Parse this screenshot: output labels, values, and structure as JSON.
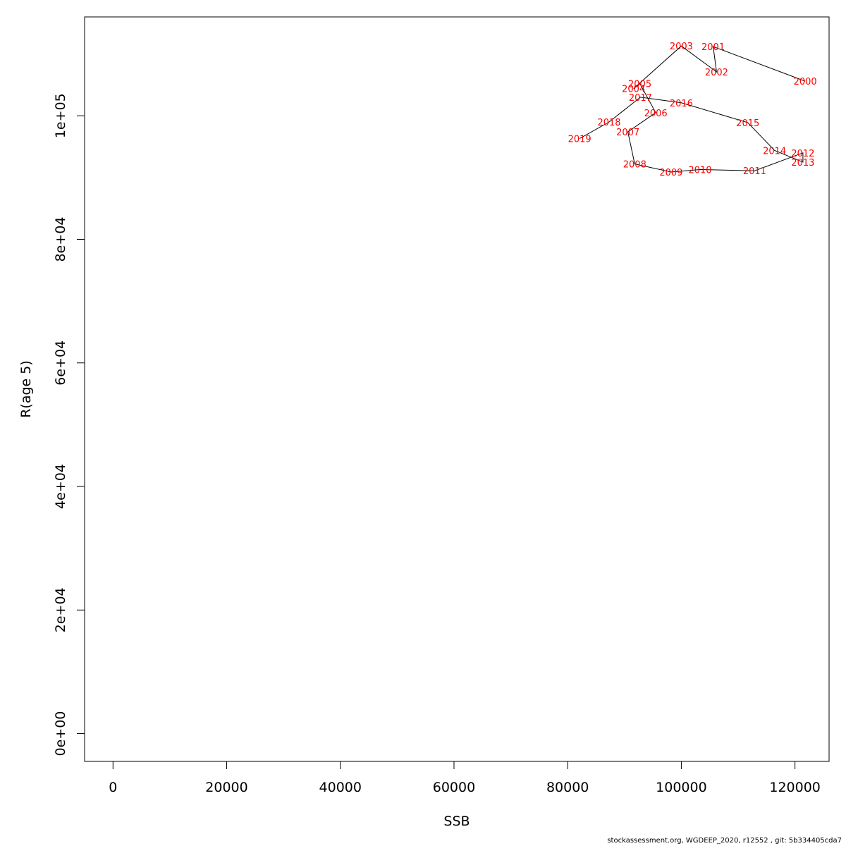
{
  "chart_data": {
    "type": "line",
    "title": "",
    "xlabel": "SSB",
    "ylabel": "R(age 5)",
    "xlim": [
      -5000,
      126000
    ],
    "ylim": [
      -4500,
      116000
    ],
    "xticks": [
      0,
      20000,
      40000,
      60000,
      80000,
      100000,
      120000
    ],
    "xtick_labels": [
      "0",
      "20000",
      "40000",
      "60000",
      "80000",
      "100000",
      "120000"
    ],
    "yticks": [
      0,
      20000,
      40000,
      60000,
      80000,
      100000
    ],
    "ytick_labels": [
      "0e+00",
      "2e+04",
      "4e+04",
      "6e+04",
      "8e+04",
      "1e+05"
    ],
    "label_color": "#ff0000",
    "line_color": "#000000",
    "points": [
      {
        "year": "2000",
        "x": 121800,
        "y": 105600
      },
      {
        "year": "2001",
        "x": 105600,
        "y": 111200
      },
      {
        "year": "2002",
        "x": 106200,
        "y": 107100
      },
      {
        "year": "2003",
        "x": 100000,
        "y": 111300
      },
      {
        "year": "2004",
        "x": 91600,
        "y": 104400
      },
      {
        "year": "2005",
        "x": 92700,
        "y": 105200
      },
      {
        "year": "2006",
        "x": 95500,
        "y": 100500
      },
      {
        "year": "2007",
        "x": 90600,
        "y": 97400
      },
      {
        "year": "2008",
        "x": 91800,
        "y": 92200
      },
      {
        "year": "2009",
        "x": 98200,
        "y": 90900
      },
      {
        "year": "2010",
        "x": 103300,
        "y": 91300
      },
      {
        "year": "2011",
        "x": 112900,
        "y": 91100
      },
      {
        "year": "2012",
        "x": 121400,
        "y": 94000
      },
      {
        "year": "2013",
        "x": 121400,
        "y": 92500
      },
      {
        "year": "2014",
        "x": 116400,
        "y": 94400
      },
      {
        "year": "2015",
        "x": 111700,
        "y": 98900
      },
      {
        "year": "2016",
        "x": 100000,
        "y": 102100
      },
      {
        "year": "2017",
        "x": 92800,
        "y": 103000
      },
      {
        "year": "2018",
        "x": 87300,
        "y": 99000
      },
      {
        "year": "2019",
        "x": 82100,
        "y": 96300
      }
    ]
  },
  "footer": {
    "text": "stockassessment.org, WGDEEP_2020, r12552 , git: 5b334405cda7"
  }
}
